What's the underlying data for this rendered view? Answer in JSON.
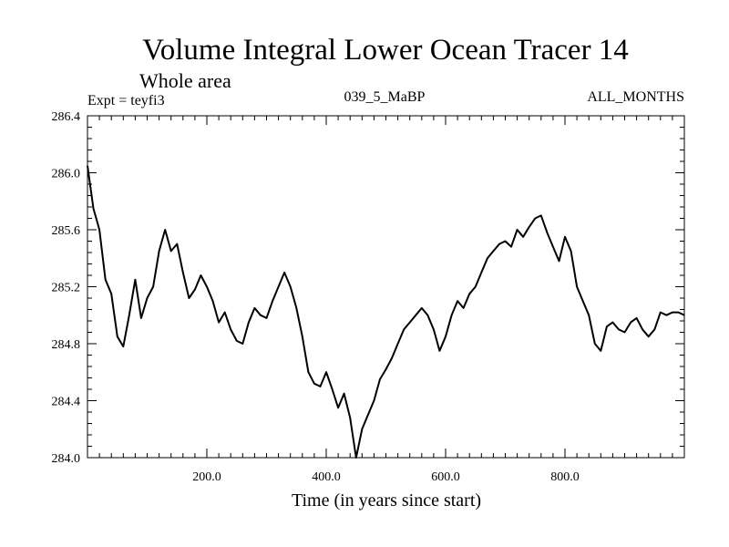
{
  "chart_data": {
    "type": "line",
    "title": "Volume Integral Lower Ocean Tracer 14",
    "subtitle": "Whole area",
    "experiment_label": "Expt = teyfi3",
    "center_label": "039_5_MaBP",
    "right_label": "ALL_MONTHS",
    "xlabel": "Time (in years since start)",
    "ylabel": "",
    "xlim": [
      0,
      1000
    ],
    "ylim": [
      284.0,
      286.4
    ],
    "xticks": [
      200,
      400,
      600,
      800
    ],
    "xtick_labels": [
      "200.0",
      "400.0",
      "600.0",
      "800.0"
    ],
    "yticks": [
      284.0,
      284.4,
      284.8,
      285.2,
      285.6,
      286.0,
      286.4
    ],
    "ytick_labels": [
      "284.0",
      "284.4",
      "284.8",
      "285.2",
      "285.6",
      "286.0",
      "286.4"
    ],
    "grid": false,
    "series": [
      {
        "name": "Lower Ocean Tracer 14",
        "x": [
          0,
          10,
          20,
          30,
          40,
          50,
          60,
          70,
          80,
          90,
          100,
          110,
          120,
          130,
          140,
          150,
          160,
          170,
          180,
          190,
          200,
          210,
          220,
          230,
          240,
          250,
          260,
          270,
          280,
          290,
          300,
          310,
          320,
          330,
          340,
          350,
          360,
          370,
          380,
          390,
          400,
          410,
          420,
          430,
          440,
          450,
          460,
          470,
          480,
          490,
          500,
          510,
          520,
          530,
          540,
          550,
          560,
          570,
          580,
          590,
          600,
          610,
          620,
          630,
          640,
          650,
          660,
          670,
          680,
          690,
          700,
          710,
          720,
          730,
          740,
          750,
          760,
          770,
          780,
          790,
          800,
          810,
          820,
          830,
          840,
          850,
          860,
          870,
          880,
          890,
          900,
          910,
          920,
          930,
          940,
          950,
          960,
          970,
          980,
          990,
          1000
        ],
        "values": [
          286.05,
          285.75,
          285.6,
          285.25,
          285.15,
          284.85,
          284.78,
          285.0,
          285.25,
          284.98,
          285.12,
          285.2,
          285.45,
          285.6,
          285.45,
          285.5,
          285.3,
          285.12,
          285.18,
          285.28,
          285.2,
          285.1,
          284.95,
          285.02,
          284.9,
          284.82,
          284.8,
          284.95,
          285.05,
          285.0,
          284.98,
          285.1,
          285.2,
          285.3,
          285.2,
          285.05,
          284.85,
          284.6,
          284.52,
          284.5,
          284.6,
          284.48,
          284.35,
          284.45,
          284.28,
          284.0,
          284.2,
          284.3,
          284.4,
          284.55,
          284.62,
          284.7,
          284.8,
          284.9,
          284.95,
          285.0,
          285.05,
          285.0,
          284.9,
          284.75,
          284.85,
          285.0,
          285.1,
          285.05,
          285.15,
          285.2,
          285.3,
          285.4,
          285.45,
          285.5,
          285.52,
          285.48,
          285.6,
          285.55,
          285.62,
          285.68,
          285.7,
          285.58,
          285.48,
          285.38,
          285.55,
          285.45,
          285.2,
          285.1,
          285.0,
          284.8,
          284.75,
          284.92,
          284.95,
          284.9,
          284.88,
          284.95,
          284.98,
          284.9,
          284.85,
          284.9,
          285.02,
          285.0,
          285.02,
          285.02,
          285.0
        ]
      }
    ]
  }
}
